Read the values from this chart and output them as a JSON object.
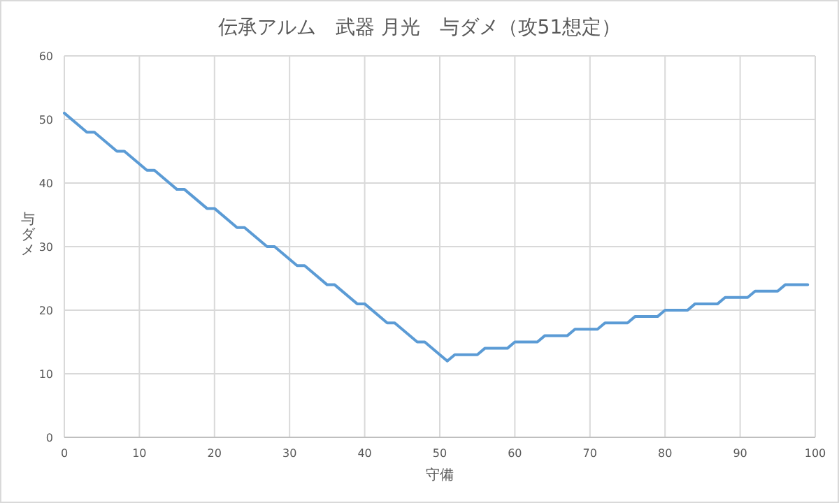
{
  "chart_data": {
    "type": "line",
    "title": "伝承アルム　武器 月光　与ダメ（攻51想定）",
    "xlabel": "守備",
    "ylabel": "与ダメ",
    "x": [
      0,
      3,
      4,
      7,
      8,
      11,
      12,
      15,
      16,
      19,
      20,
      23,
      24,
      27,
      28,
      31,
      32,
      35,
      36,
      39,
      40,
      43,
      44,
      47,
      48,
      51,
      52,
      55,
      56,
      59,
      60,
      63,
      64,
      67,
      68,
      71,
      72,
      75,
      76,
      79,
      80,
      83,
      84,
      87,
      88,
      91,
      92,
      95,
      96,
      99
    ],
    "series": [
      {
        "color": "#5b9bd5",
        "values": [
          51,
          48,
          48,
          45,
          45,
          42,
          42,
          39,
          39,
          36,
          36,
          33,
          33,
          30,
          30,
          27,
          27,
          24,
          24,
          21,
          21,
          18,
          18,
          15,
          15,
          12,
          13,
          13,
          14,
          14,
          15,
          15,
          16,
          16,
          17,
          17,
          18,
          18,
          19,
          19,
          20,
          20,
          21,
          21,
          22,
          22,
          23,
          23,
          24,
          24
        ]
      }
    ],
    "xlim": [
      0,
      100
    ],
    "ylim": [
      0,
      60
    ],
    "xticks": [
      0,
      10,
      20,
      30,
      40,
      50,
      60,
      70,
      80,
      90,
      100
    ],
    "yticks": [
      0,
      10,
      20,
      30,
      40,
      50,
      60
    ],
    "grid": true,
    "marker": "none",
    "line_style": "solid"
  }
}
